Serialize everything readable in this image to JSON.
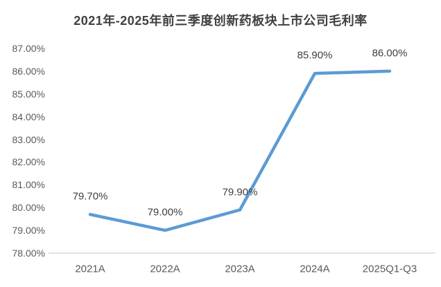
{
  "chart_data": {
    "type": "line",
    "title": "2021年-2025年前三季度创新药板块上市公司毛利率",
    "categories": [
      "2021A",
      "2022A",
      "2023A",
      "2024A",
      "2025Q1-Q3"
    ],
    "values": [
      79.7,
      79.0,
      79.9,
      85.9,
      86.0
    ],
    "data_labels": [
      "79.70%",
      "79.00%",
      "79.90%",
      "85.90%",
      "86.00%"
    ],
    "yticks": [
      "78.00%",
      "79.00%",
      "80.00%",
      "81.00%",
      "82.00%",
      "83.00%",
      "84.00%",
      "85.00%",
      "86.00%",
      "87.00%"
    ],
    "ylim": [
      78,
      87
    ],
    "xlabel": "",
    "ylabel": "",
    "grid": false,
    "legend": "none",
    "colors": {
      "line": "#5B9BD5",
      "axis_line": "#D9D9D9",
      "title_text": "#404040",
      "data_label_text": "#404040",
      "tick_text": "#595959",
      "background": "#FFFFFF"
    }
  }
}
